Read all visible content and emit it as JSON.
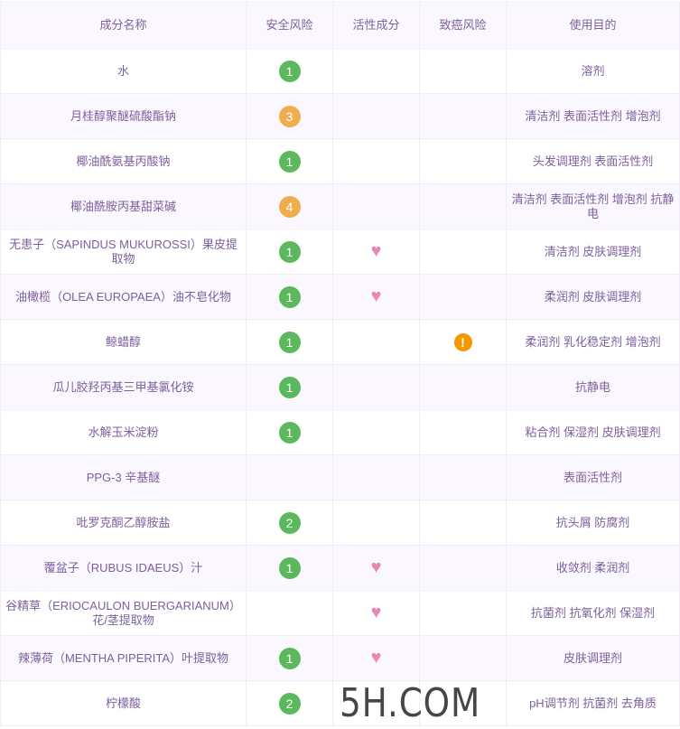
{
  "colors": {
    "text": "#7d5f9c",
    "risk_low": "#5cb85c",
    "risk_mid": "#f0ad4e",
    "heart": "#e986b8",
    "warning": "#f39800"
  },
  "headers": [
    "成分名称",
    "安全风险",
    "活性成分",
    "致癌风险",
    "使用目的"
  ],
  "rows": [
    {
      "name": "水",
      "risk": "1",
      "active": false,
      "cancer": false,
      "purpose": "溶剂"
    },
    {
      "name": "月桂醇聚醚硫酸酯钠",
      "risk": "3",
      "active": false,
      "cancer": false,
      "purpose": "清洁剂 表面活性剂 增泡剂"
    },
    {
      "name": "椰油酰氨基丙酸钠",
      "risk": "1",
      "active": false,
      "cancer": false,
      "purpose": "头发调理剂 表面活性剂"
    },
    {
      "name": "椰油酰胺丙基甜菜碱",
      "risk": "4",
      "active": false,
      "cancer": false,
      "purpose": "清洁剂 表面活性剂 增泡剂 抗静电"
    },
    {
      "name": "无患子（SAPINDUS MUKUROSSI）果皮提取物",
      "risk": "1",
      "active": true,
      "cancer": false,
      "purpose": "清洁剂 皮肤调理剂"
    },
    {
      "name": "油橄榄（OLEA EUROPAEA）油不皂化物",
      "risk": "1",
      "active": true,
      "cancer": false,
      "purpose": "柔润剂 皮肤调理剂"
    },
    {
      "name": "鲸蜡醇",
      "risk": "1",
      "active": false,
      "cancer": true,
      "purpose": "柔润剂 乳化稳定剂 增泡剂"
    },
    {
      "name": "瓜儿胶羟丙基三甲基氯化铵",
      "risk": "1",
      "active": false,
      "cancer": false,
      "purpose": "抗静电"
    },
    {
      "name": "水解玉米淀粉",
      "risk": "1",
      "active": false,
      "cancer": false,
      "purpose": "粘合剂 保湿剂 皮肤调理剂"
    },
    {
      "name": "PPG-3 辛基醚",
      "risk": "",
      "active": false,
      "cancer": false,
      "purpose": "表面活性剂"
    },
    {
      "name": "吡罗克酮乙醇胺盐",
      "risk": "2",
      "active": false,
      "cancer": false,
      "purpose": "抗头屑 防腐剂"
    },
    {
      "name": "覆盆子（RUBUS IDAEUS）汁",
      "risk": "1",
      "active": true,
      "cancer": false,
      "purpose": "收敛剂 柔润剂"
    },
    {
      "name": "谷精草（ERIOCAULON BUERGARIANUM）花/茎提取物",
      "risk": "",
      "active": true,
      "cancer": false,
      "purpose": "抗菌剂 抗氧化剂 保湿剂"
    },
    {
      "name": "辣薄荷（MENTHA PIPERITA）叶提取物",
      "risk": "1",
      "active": true,
      "cancer": false,
      "purpose": "皮肤调理剂"
    },
    {
      "name": "柠檬酸",
      "risk": "2",
      "active": false,
      "cancer": false,
      "purpose": "pH调节剂 抗菌剂 去角质"
    }
  ],
  "watermark": "5H.COM"
}
